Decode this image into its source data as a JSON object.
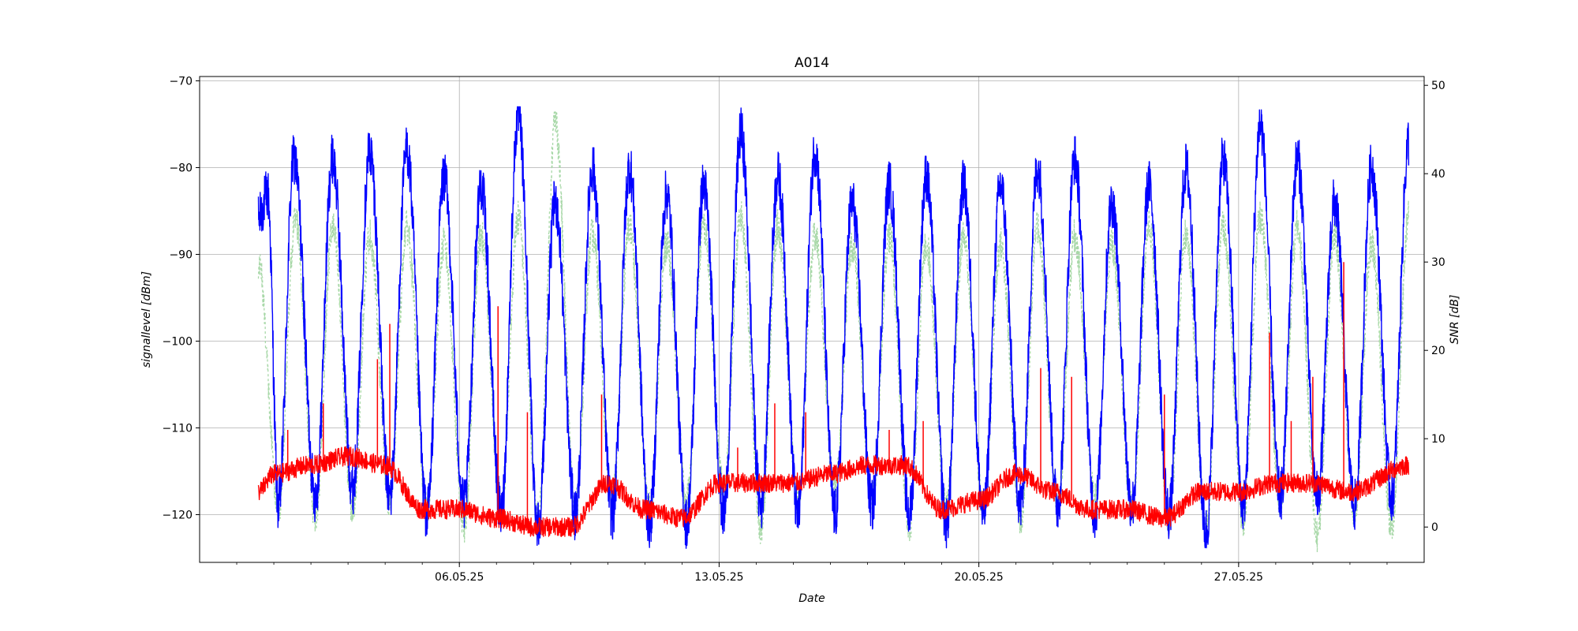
{
  "chart_data": {
    "type": "line",
    "title": "A014",
    "xlabel": "Date",
    "ylabel_left": "signallevel [dBm]",
    "ylabel_right": "SNR [dB]",
    "grid": true,
    "x_range": [
      "2025-04-29",
      "2025-06-01"
    ],
    "xtick_labels": [
      "06.05.25",
      "13.05.25",
      "20.05.25",
      "27.05.25"
    ],
    "xtick_dates": [
      "2025-05-06",
      "2025-05-13",
      "2025-05-20",
      "2025-05-27"
    ],
    "ylim_left": [
      -125.5,
      -69.5
    ],
    "yticks_left": [
      -70,
      -80,
      -90,
      -100,
      -110,
      -120
    ],
    "ylim_right": [
      -4,
      51
    ],
    "yticks_right": [
      50,
      40,
      30,
      20,
      10,
      0
    ],
    "x_start": "2025-04-30T14:00",
    "x_end": "2025-05-31T14:00",
    "daily_cycle": {
      "blue_signal_peak_dBm": [
        -82,
        -78,
        -78,
        -77,
        -80,
        -83,
        -84,
        -74,
        -84,
        -80,
        -80,
        -83,
        -82,
        -76,
        -81,
        -78,
        -84,
        -82,
        -81,
        -82,
        -82,
        -80,
        -79,
        -84,
        -82,
        -80,
        -79,
        -75,
        -79,
        -84,
        -80,
        -77
      ],
      "blue_signal_trough_dBm": -120
    },
    "series": [
      {
        "name": "",
        "axis": "left",
        "color": "#0000ff",
        "style": "solid",
        "points": [
          [
            "2025-04-30T14:00",
            -86
          ],
          [
            "2025-04-30T20:00",
            -83
          ],
          [
            "2025-05-01T03:00",
            -119
          ],
          [
            "2025-05-01T13:00",
            -79
          ],
          [
            "2025-05-02T03:00",
            -118
          ],
          [
            "2025-05-02T14:00",
            -79
          ],
          [
            "2025-05-03T03:00",
            -117
          ],
          [
            "2025-05-03T14:00",
            -78
          ],
          [
            "2025-05-04T03:00",
            -118
          ],
          [
            "2025-05-04T14:00",
            -78
          ],
          [
            "2025-05-05T03:00",
            -120
          ],
          [
            "2025-05-05T14:00",
            -81
          ],
          [
            "2025-05-06T03:00",
            -119
          ],
          [
            "2025-05-06T14:00",
            -82
          ],
          [
            "2025-05-07T03:00",
            -120
          ],
          [
            "2025-05-07T14:00",
            -74
          ],
          [
            "2025-05-08T03:00",
            -121
          ],
          [
            "2025-05-08T14:00",
            -84
          ],
          [
            "2025-05-09T03:00",
            -120
          ],
          [
            "2025-05-09T14:00",
            -80
          ],
          [
            "2025-05-10T03:00",
            -120
          ],
          [
            "2025-05-10T14:00",
            -80
          ],
          [
            "2025-05-11T03:00",
            -121
          ],
          [
            "2025-05-11T14:00",
            -83
          ],
          [
            "2025-05-12T03:00",
            -121
          ],
          [
            "2025-05-12T14:00",
            -82
          ],
          [
            "2025-05-13T03:00",
            -120
          ],
          [
            "2025-05-13T14:00",
            -76
          ],
          [
            "2025-05-14T03:00",
            -119
          ],
          [
            "2025-05-14T14:00",
            -81
          ],
          [
            "2025-05-15T03:00",
            -120
          ],
          [
            "2025-05-15T14:00",
            -78
          ],
          [
            "2025-05-16T03:00",
            -120
          ],
          [
            "2025-05-16T14:00",
            -84
          ],
          [
            "2025-05-17T03:00",
            -119
          ],
          [
            "2025-05-17T14:00",
            -82
          ],
          [
            "2025-05-18T03:00",
            -120
          ],
          [
            "2025-05-18T14:00",
            -81
          ],
          [
            "2025-05-19T03:00",
            -121
          ],
          [
            "2025-05-19T14:00",
            -82
          ],
          [
            "2025-05-20T03:00",
            -120
          ],
          [
            "2025-05-20T14:00",
            -82
          ],
          [
            "2025-05-21T03:00",
            -119
          ],
          [
            "2025-05-21T14:00",
            -80
          ],
          [
            "2025-05-22T03:00",
            -119
          ],
          [
            "2025-05-22T14:00",
            -79
          ],
          [
            "2025-05-23T03:00",
            -120
          ],
          [
            "2025-05-23T14:00",
            -84
          ],
          [
            "2025-05-24T03:00",
            -119
          ],
          [
            "2025-05-24T14:00",
            -82
          ],
          [
            "2025-05-25T03:00",
            -120
          ],
          [
            "2025-05-25T14:00",
            -80
          ],
          [
            "2025-05-26T03:00",
            -122
          ],
          [
            "2025-05-26T14:00",
            -79
          ],
          [
            "2025-05-27T03:00",
            -119
          ],
          [
            "2025-05-27T14:00",
            -75
          ],
          [
            "2025-05-28T03:00",
            -118
          ],
          [
            "2025-05-28T14:00",
            -79
          ],
          [
            "2025-05-29T03:00",
            -118
          ],
          [
            "2025-05-29T14:00",
            -84
          ],
          [
            "2025-05-30T03:00",
            -119
          ],
          [
            "2025-05-30T14:00",
            -80
          ],
          [
            "2025-05-31T03:00",
            -118
          ],
          [
            "2025-05-31T14:00",
            -77
          ]
        ]
      },
      {
        "name": "",
        "axis": "right",
        "color": "#ff0000",
        "style": "solid",
        "points": [
          [
            "2025-04-30T14:00",
            4
          ],
          [
            "2025-05-01T00:00",
            6
          ],
          [
            "2025-05-02T00:00",
            7
          ],
          [
            "2025-05-03T00:00",
            8
          ],
          [
            "2025-05-04T00:00",
            7
          ],
          [
            "2025-05-05T00:00",
            2
          ],
          [
            "2025-05-06T00:00",
            2
          ],
          [
            "2025-05-07T00:00",
            1
          ],
          [
            "2025-05-08T00:00",
            0
          ],
          [
            "2025-05-09T00:00",
            0
          ],
          [
            "2025-05-10T00:00",
            5
          ],
          [
            "2025-05-11T00:00",
            2
          ],
          [
            "2025-05-12T00:00",
            1
          ],
          [
            "2025-05-13T00:00",
            5
          ],
          [
            "2025-05-14T00:00",
            5
          ],
          [
            "2025-05-15T00:00",
            5
          ],
          [
            "2025-05-16T00:00",
            6
          ],
          [
            "2025-05-17T00:00",
            7
          ],
          [
            "2025-05-18T00:00",
            7
          ],
          [
            "2025-05-19T00:00",
            2
          ],
          [
            "2025-05-20T00:00",
            3
          ],
          [
            "2025-05-21T00:00",
            6
          ],
          [
            "2025-05-22T00:00",
            4
          ],
          [
            "2025-05-23T00:00",
            2
          ],
          [
            "2025-05-24T00:00",
            2
          ],
          [
            "2025-05-25T00:00",
            1
          ],
          [
            "2025-05-26T00:00",
            4
          ],
          [
            "2025-05-27T00:00",
            4
          ],
          [
            "2025-05-28T00:00",
            5
          ],
          [
            "2025-05-29T00:00",
            5
          ],
          [
            "2025-05-30T00:00",
            4
          ],
          [
            "2025-05-31T14:00",
            7
          ]
        ],
        "spikes": [
          [
            "2025-05-01T09:00",
            11
          ],
          [
            "2025-05-02T08:00",
            14
          ],
          [
            "2025-05-03T19:00",
            19
          ],
          [
            "2025-05-04T03:00",
            23
          ],
          [
            "2025-05-07T01:00",
            25
          ],
          [
            "2025-05-07T20:00",
            13
          ],
          [
            "2025-05-09T20:00",
            15
          ],
          [
            "2025-05-13T12:00",
            9
          ],
          [
            "2025-05-14T12:00",
            14
          ],
          [
            "2025-05-15T08:00",
            13
          ],
          [
            "2025-05-17T14:00",
            11
          ],
          [
            "2025-05-18T12:00",
            12
          ],
          [
            "2025-05-21T16:00",
            18
          ],
          [
            "2025-05-22T12:00",
            17
          ],
          [
            "2025-05-25T00:00",
            15
          ],
          [
            "2025-05-27T20:00",
            22
          ],
          [
            "2025-05-28T10:00",
            12
          ],
          [
            "2025-05-29T00:00",
            17
          ],
          [
            "2025-05-29T20:00",
            30
          ]
        ]
      },
      {
        "name": "",
        "axis": "right",
        "color": "#a8d8a8",
        "style": "dotted",
        "points": [
          [
            "2025-04-30T14:00",
            30
          ],
          [
            "2025-05-01T03:00",
            2
          ],
          [
            "2025-05-01T14:00",
            35
          ],
          [
            "2025-05-02T03:00",
            1
          ],
          [
            "2025-05-02T14:00",
            34
          ],
          [
            "2025-05-03T03:00",
            2
          ],
          [
            "2025-05-03T14:00",
            33
          ],
          [
            "2025-05-04T03:00",
            3
          ],
          [
            "2025-05-04T14:00",
            34
          ],
          [
            "2025-05-05T03:00",
            2
          ],
          [
            "2025-05-05T14:00",
            32
          ],
          [
            "2025-05-06T03:00",
            0
          ],
          [
            "2025-05-06T14:00",
            33
          ],
          [
            "2025-05-07T03:00",
            2
          ],
          [
            "2025-05-07T14:00",
            35
          ],
          [
            "2025-05-08T03:00",
            1
          ],
          [
            "2025-05-08T14:00",
            46
          ],
          [
            "2025-05-09T03:00",
            2
          ],
          [
            "2025-05-09T14:00",
            33
          ],
          [
            "2025-05-10T03:00",
            3
          ],
          [
            "2025-05-10T14:00",
            34
          ],
          [
            "2025-05-11T03:00",
            2
          ],
          [
            "2025-05-11T14:00",
            32
          ],
          [
            "2025-05-12T03:00",
            3
          ],
          [
            "2025-05-12T14:00",
            34
          ],
          [
            "2025-05-13T03:00",
            4
          ],
          [
            "2025-05-13T14:00",
            35
          ],
          [
            "2025-05-14T03:00",
            0
          ],
          [
            "2025-05-14T14:00",
            34
          ],
          [
            "2025-05-15T03:00",
            3
          ],
          [
            "2025-05-15T14:00",
            33
          ],
          [
            "2025-05-16T03:00",
            4
          ],
          [
            "2025-05-16T14:00",
            32
          ],
          [
            "2025-05-17T03:00",
            3
          ],
          [
            "2025-05-17T14:00",
            33
          ],
          [
            "2025-05-18T03:00",
            0
          ],
          [
            "2025-05-18T14:00",
            32
          ],
          [
            "2025-05-19T03:00",
            2
          ],
          [
            "2025-05-19T14:00",
            33
          ],
          [
            "2025-05-20T03:00",
            2
          ],
          [
            "2025-05-20T14:00",
            32
          ],
          [
            "2025-05-21T03:00",
            1
          ],
          [
            "2025-05-21T14:00",
            34
          ],
          [
            "2025-05-22T03:00",
            2
          ],
          [
            "2025-05-22T14:00",
            33
          ],
          [
            "2025-05-23T03:00",
            3
          ],
          [
            "2025-05-23T14:00",
            32
          ],
          [
            "2025-05-24T03:00",
            2
          ],
          [
            "2025-05-24T14:00",
            34
          ],
          [
            "2025-05-25T03:00",
            1
          ],
          [
            "2025-05-25T14:00",
            33
          ],
          [
            "2025-05-26T03:00",
            0
          ],
          [
            "2025-05-26T14:00",
            34
          ],
          [
            "2025-05-27T03:00",
            1
          ],
          [
            "2025-05-27T14:00",
            35
          ],
          [
            "2025-05-28T03:00",
            3
          ],
          [
            "2025-05-28T14:00",
            34
          ],
          [
            "2025-05-29T03:00",
            -1
          ],
          [
            "2025-05-29T14:00",
            33
          ],
          [
            "2025-05-30T03:00",
            2
          ],
          [
            "2025-05-30T14:00",
            32
          ],
          [
            "2025-05-31T03:00",
            0
          ],
          [
            "2025-05-31T14:00",
            35
          ]
        ]
      }
    ]
  }
}
